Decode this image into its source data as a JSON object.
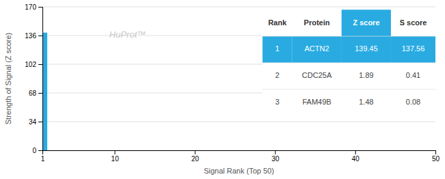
{
  "chart_data": {
    "type": "bar",
    "x": [
      1
    ],
    "values": [
      139.45
    ],
    "color": "#29ABE2",
    "xlim": [
      1,
      50
    ],
    "xticks": [
      1,
      10,
      20,
      30,
      40,
      50
    ],
    "ylim": [
      0,
      170
    ],
    "yticks": [
      0,
      34,
      68,
      102,
      136,
      170
    ],
    "grid": true,
    "xlabel": "Signal Rank (Top 50)",
    "ylabel": "Strength of Signal (Z score)",
    "annotations": [
      "HuProt™"
    ],
    "table": [
      [
        "Rank",
        "Protein",
        "Z score",
        "S score"
      ],
      [
        "1",
        "ACTN2",
        "139.45",
        "137.56"
      ],
      [
        "2",
        "CDC25A",
        "1.89",
        "0.41"
      ],
      [
        "3",
        "FAM49B",
        "1.48",
        "0.08"
      ]
    ]
  }
}
